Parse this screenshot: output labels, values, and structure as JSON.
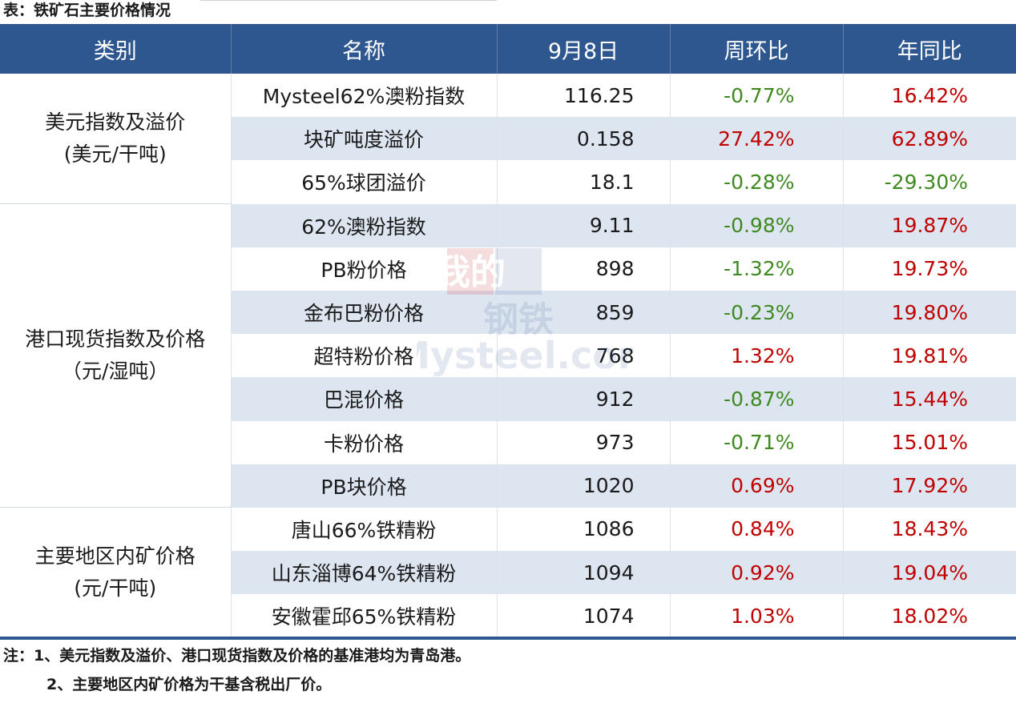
{
  "caption": "表：铁矿石主要价格情况",
  "headers": [
    "类别",
    "名称",
    "9月8日",
    "周环比",
    "年同比"
  ],
  "groups": [
    {
      "label_line1": "美元指数及溢价",
      "label_line2": "(美元/干吨)"
    },
    {
      "label_line1": "港口现货指数及价格",
      "label_line2": "（元/湿吨）"
    },
    {
      "label_line1": "主要地区内矿价格",
      "label_line2": "(元/干吨)"
    }
  ],
  "rows": [
    {
      "name": "Mysteel62%澳粉指数",
      "value": "116.25",
      "wow": "-0.77%",
      "yoy": "16.42%"
    },
    {
      "name": "块矿吨度溢价",
      "value": "0.158",
      "wow": "27.42%",
      "yoy": "62.89%"
    },
    {
      "name": "65%球团溢价",
      "value": "18.1",
      "wow": "-0.28%",
      "yoy": "-29.30%"
    },
    {
      "name": "62%澳粉指数",
      "value": "9.11",
      "wow": "-0.98%",
      "yoy": "19.87%"
    },
    {
      "name": "PB粉价格",
      "value": "898",
      "wow": "-1.32%",
      "yoy": "19.73%"
    },
    {
      "name": "金布巴粉价格",
      "value": "859",
      "wow": "-0.23%",
      "yoy": "19.80%"
    },
    {
      "name": "超特粉价格",
      "value": "768",
      "wow": "1.32%",
      "yoy": "19.81%"
    },
    {
      "name": "巴混价格",
      "value": "912",
      "wow": "-0.87%",
      "yoy": "15.44%"
    },
    {
      "name": "卡粉价格",
      "value": "973",
      "wow": "-0.71%",
      "yoy": "15.01%"
    },
    {
      "name": "PB块价格",
      "value": "1020",
      "wow": "0.69%",
      "yoy": "17.92%"
    },
    {
      "name": "唐山66%铁精粉",
      "value": "1086",
      "wow": "0.84%",
      "yoy": "18.43%"
    },
    {
      "name": "山东淄博64%铁精粉",
      "value": "1094",
      "wow": "0.92%",
      "yoy": "19.04%"
    },
    {
      "name": "安徽霍邱65%铁精粉",
      "value": "1074",
      "wow": "1.03%",
      "yoy": "18.02%"
    }
  ],
  "notes": {
    "line1": "注：1、美元指数及溢价、港口现货指数及价格的基准港均为青岛港。",
    "line2": "2、主要地区内矿价格为干基含税出厂价。"
  },
  "watermark": {
    "text1": "我的",
    "text2": "钢铁",
    "text3": "Mysteel.com"
  },
  "colors": {
    "header_bg": "#2e5790",
    "alt_row": "#dde5f0",
    "positive": "#c00000",
    "negative": "#3f8a20"
  }
}
